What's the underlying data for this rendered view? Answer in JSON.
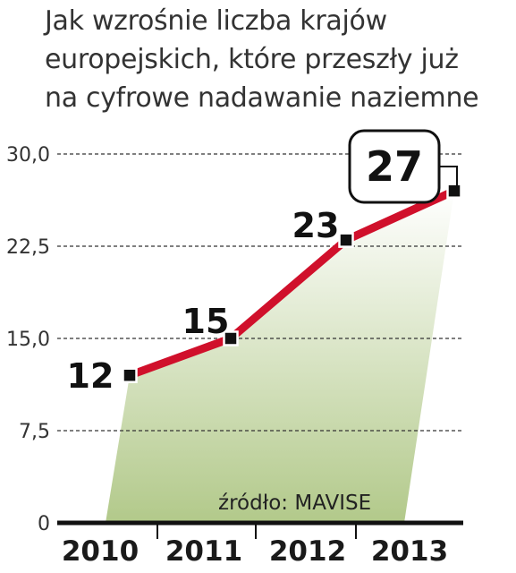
{
  "title_lines": [
    "Jak wzrośnie liczba krajów",
    "europejskich, które przeszły już",
    "na cyfrowe nadawanie naziemne"
  ],
  "source": "źródło: MAVISE",
  "colors": {
    "line": "#d0102b",
    "fill_top": "#ffffff",
    "fill_bottom": "#b2c98a",
    "marker": "#111111"
  },
  "chart_data": {
    "type": "line",
    "categories": [
      "2010",
      "2011",
      "2012",
      "2013"
    ],
    "values": [
      12,
      15,
      23,
      27
    ],
    "data_labels": [
      "12",
      "15",
      "23",
      "27"
    ],
    "y_ticks": [
      "30,0",
      "22,5",
      "15,0",
      "7,5",
      "0"
    ],
    "ylim": [
      0,
      30
    ],
    "grid": true,
    "highlight_last": true,
    "area_fill": "gradient"
  }
}
